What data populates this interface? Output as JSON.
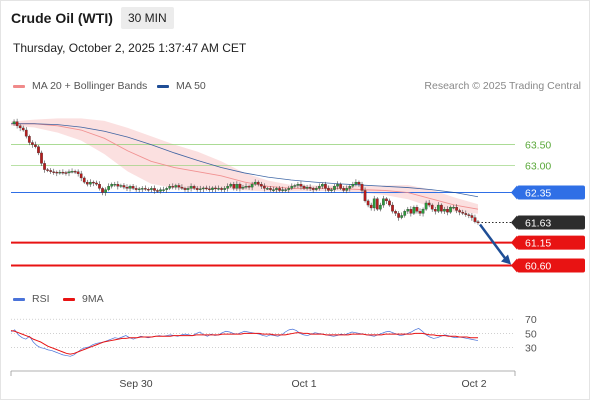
{
  "header": {
    "title": "Crude Oil (WTI)",
    "timeframe": "30 MIN",
    "datetime": "Thursday, October 2, 2025 1:37:47 AM CET"
  },
  "legend": {
    "items": [
      {
        "label": "MA 20 + Bollinger Bands",
        "color": "#f08a8a"
      },
      {
        "label": "MA 50",
        "color": "#1f4e96"
      }
    ],
    "credit": "Research © 2025 Trading Central"
  },
  "chart_data": [
    {
      "type": "line",
      "title": "Crude Oil (WTI)",
      "timeframe": "30 MIN",
      "x_ticks": [
        "Sep 30",
        "Oct 1",
        "Oct 2"
      ],
      "ylim": [
        60.3,
        64.45
      ],
      "series": [
        {
          "name": "MA 20 + Bollinger Bands",
          "color": "#f08a8a",
          "x": [
            0,
            10,
            20,
            30,
            40,
            50,
            60,
            70,
            80,
            90,
            100,
            110,
            120,
            130,
            140,
            150,
            160,
            170,
            180,
            190,
            200
          ],
          "values": [
            64.0,
            64.0,
            63.95,
            63.85,
            63.65,
            63.35,
            63.1,
            62.95,
            62.85,
            62.75,
            62.6,
            62.5,
            62.45,
            62.45,
            62.45,
            62.42,
            62.4,
            62.35,
            62.2,
            62.05,
            61.95
          ]
        },
        {
          "name": "MA 50",
          "color": "#1f4e96",
          "x": [
            0,
            10,
            20,
            30,
            40,
            50,
            60,
            70,
            80,
            90,
            100,
            110,
            120,
            130,
            140,
            150,
            160,
            170,
            180,
            190,
            200
          ],
          "values": [
            64.0,
            64.0,
            63.98,
            63.92,
            63.82,
            63.68,
            63.5,
            63.3,
            63.12,
            62.95,
            62.82,
            62.72,
            62.65,
            62.6,
            62.56,
            62.53,
            62.5,
            62.47,
            62.42,
            62.35,
            62.25
          ]
        }
      ],
      "price": [
        64.0,
        64.05,
        63.95,
        63.9,
        63.85,
        63.7,
        63.55,
        63.5,
        63.45,
        63.3,
        63.05,
        62.9,
        62.88,
        62.85,
        62.84,
        62.82,
        62.84,
        62.83,
        62.82,
        62.85,
        62.86,
        62.85,
        62.8,
        62.7,
        62.6,
        62.55,
        62.6,
        62.58,
        62.55,
        62.45,
        62.35,
        62.42,
        62.5,
        62.55,
        62.55,
        62.5,
        62.52,
        62.48,
        62.45,
        62.5,
        62.45,
        62.42,
        62.44,
        62.45,
        62.43,
        62.42,
        62.45,
        62.4,
        62.38,
        62.42,
        62.42,
        62.45,
        62.5,
        62.48,
        62.52,
        62.48,
        62.45,
        62.42,
        62.45,
        62.5,
        62.45,
        62.42,
        62.44,
        62.46,
        62.44,
        62.42,
        62.46,
        62.44,
        62.45,
        62.42,
        62.45,
        62.5,
        62.55,
        62.45,
        62.55,
        62.45,
        62.48,
        62.5,
        62.48,
        62.55,
        62.6,
        62.55,
        62.5,
        62.45,
        62.45,
        62.42,
        62.42,
        62.45,
        62.4,
        62.42,
        62.42,
        62.45,
        62.5,
        62.52,
        62.55,
        62.5,
        62.45,
        62.48,
        62.45,
        62.42,
        62.45,
        62.5,
        62.55,
        62.45,
        62.4,
        62.42,
        62.5,
        62.55,
        62.45,
        62.4,
        62.45,
        62.5,
        62.55,
        62.6,
        62.55,
        62.4,
        62.15,
        62.05,
        61.98,
        62.2,
        61.95,
        62.05,
        62.2,
        62.15,
        62.05,
        61.9,
        61.85,
        61.75,
        61.8,
        61.9,
        61.95,
        61.85,
        62.0,
        61.9,
        61.85,
        61.95,
        62.1,
        62.05,
        61.95,
        61.9,
        62.05,
        61.9,
        61.95,
        61.88,
        62.0,
        62.0,
        61.92,
        61.88,
        61.85,
        61.82,
        61.8,
        61.75,
        61.65,
        61.63
      ],
      "bollinger_band": {
        "color": "#f7c6c6"
      },
      "levels": [
        {
          "label": "63.50",
          "value": 63.5,
          "color": "#8fcf72",
          "style": "thin",
          "badge": false
        },
        {
          "label": "63.00",
          "value": 63.0,
          "color": "#8fcf72",
          "style": "thin",
          "badge": false
        },
        {
          "label": "62.35",
          "value": 62.35,
          "color": "#2f6fe6",
          "style": "solid",
          "badge": true
        },
        {
          "label": "61.63",
          "value": 61.63,
          "color": "#2d2d2d",
          "style": "dotted",
          "badge": true
        },
        {
          "label": "61.15",
          "value": 61.15,
          "color": "#e81313",
          "style": "thick",
          "badge": true
        },
        {
          "label": "60.60",
          "value": 60.6,
          "color": "#e81313",
          "style": "thick",
          "badge": true
        }
      ],
      "forecast_arrow": {
        "from": 61.63,
        "to": 60.6,
        "color": "#1f4e96"
      }
    },
    {
      "type": "line",
      "title": "RSI",
      "ylim": [
        10,
        80
      ],
      "y_ticks": [
        "70",
        "50",
        "30"
      ],
      "series": [
        {
          "name": "RSI",
          "color": "#4a73d9",
          "values": [
            52,
            55,
            48,
            44,
            42,
            46,
            38,
            33,
            30,
            29,
            27,
            26,
            24,
            22,
            20,
            19,
            18,
            20,
            24,
            28,
            30,
            31,
            34,
            36,
            37,
            38,
            40,
            42,
            44,
            43,
            45,
            47,
            44,
            42,
            44,
            46,
            45,
            44,
            45,
            46,
            47,
            46,
            47,
            48,
            47,
            46,
            48,
            49,
            48,
            47,
            50,
            52,
            48,
            46,
            49,
            47,
            48,
            51,
            53,
            52,
            50,
            49,
            51,
            53,
            52,
            51,
            50,
            49,
            47,
            46,
            48,
            47,
            46,
            48,
            52,
            55,
            56,
            54,
            50,
            48,
            47,
            49,
            51,
            50,
            49,
            48,
            47,
            46,
            47,
            49,
            48,
            50,
            52,
            51,
            50,
            49,
            48,
            47,
            46,
            48,
            50,
            52,
            53,
            51,
            49,
            47,
            48,
            50,
            52,
            55,
            57,
            53,
            48,
            45,
            43,
            44,
            46,
            48,
            47,
            45,
            44,
            45,
            44,
            43,
            42,
            41,
            40
          ]
        },
        {
          "name": "9MA",
          "color": "#e81313",
          "values": [
            54,
            53,
            51,
            49,
            47,
            45,
            42,
            40,
            38,
            35,
            32,
            30,
            28,
            26,
            24,
            22,
            21,
            22,
            24,
            26,
            28,
            30,
            32,
            34,
            36,
            38,
            39,
            40,
            41,
            42,
            43,
            43,
            44,
            44,
            44,
            45,
            45,
            45,
            45,
            46,
            46,
            46,
            46,
            46,
            47,
            47,
            47,
            47,
            47,
            47,
            48,
            48,
            48,
            48,
            48,
            48,
            48,
            49,
            49,
            49,
            49,
            49,
            49,
            50,
            50,
            50,
            50,
            50,
            49,
            49,
            49,
            48,
            48,
            48,
            48,
            49,
            50,
            51,
            51,
            50,
            50,
            49,
            49,
            49,
            49,
            48,
            48,
            48,
            48,
            48,
            48,
            48,
            49,
            49,
            49,
            49,
            48,
            48,
            48,
            48,
            48,
            49,
            49,
            49,
            49,
            49,
            49,
            49,
            49,
            50,
            50,
            50,
            49,
            48,
            48,
            47,
            47,
            47,
            46,
            46,
            46,
            45,
            45,
            45,
            44,
            44,
            44
          ]
        }
      ]
    }
  ]
}
